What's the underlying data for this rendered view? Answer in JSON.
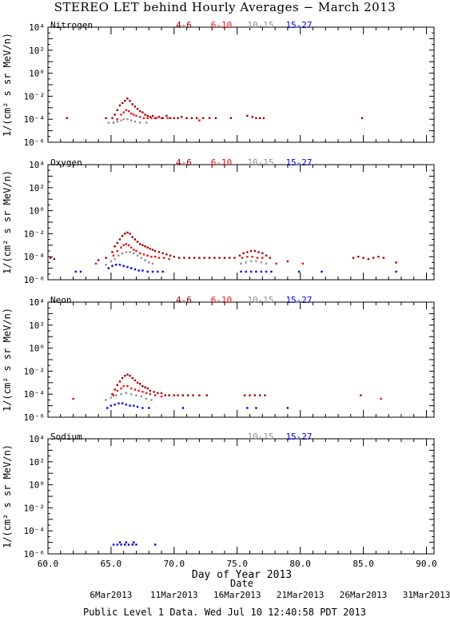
{
  "title": "STEREO LET behind Hourly Averages − March 2013",
  "xlabel": "Day of Year 2013",
  "date_label": "Date",
  "footer": "Public Level 1 Data. Wed Jul 10 12:40:58 PDT 2013",
  "ylabel": "1/(cm² s sr MeV/n)",
  "x_ticks": [
    "60.0",
    "65.0",
    "70.0",
    "75.0",
    "80.0",
    "85.0",
    "90.0"
  ],
  "date_ticks": [
    {
      "label": "6Mar2013",
      "doy": 65
    },
    {
      "label": "11Mar2013",
      "doy": 70
    },
    {
      "label": "16Mar2013",
      "doy": 75
    },
    {
      "label": "21Mar2013",
      "doy": 80
    },
    {
      "label": "26Mar2013",
      "doy": 85
    },
    {
      "label": "31Mar2013",
      "doy": 90
    }
  ],
  "y_ticks": [
    "10⁴",
    "10²",
    "10⁰",
    "10⁻²",
    "10⁻⁴",
    "10⁻⁶"
  ],
  "colors": {
    "e4_6": "#a00000",
    "e6_10": "#ee1111",
    "e10_15": "#909090",
    "e15_27": "#0000ee"
  },
  "chart_data": [
    {
      "type": "scatter",
      "panel": "Nitrogen",
      "xlim": [
        60.0,
        90.6
      ],
      "ylim_log10": [
        -6,
        4
      ],
      "yscale": "log",
      "legend": [
        "4-6",
        "6-10",
        "10-15",
        "15-27"
      ],
      "series": [
        {
          "name": "4-6",
          "color": "#a00000",
          "x": [
            61.5,
            64.6,
            65.1,
            65.3,
            65.5,
            65.7,
            65.9,
            66.1,
            66.3,
            66.5,
            66.7,
            66.9,
            67.1,
            67.3,
            67.5,
            67.7,
            67.9,
            68.1,
            68.3,
            68.5,
            68.8,
            69.1,
            69.4,
            69.7,
            70.0,
            70.3,
            70.6,
            71.0,
            71.4,
            71.8,
            72.3,
            72.8,
            73.3,
            74.5,
            75.8,
            76.2,
            76.5,
            76.8,
            77.1,
            84.9
          ],
          "y": [
            -3.9,
            -3.9,
            -3.9,
            -3.6,
            -3.2,
            -2.8,
            -2.6,
            -2.4,
            -2.2,
            -2.4,
            -2.7,
            -2.9,
            -3.1,
            -3.3,
            -3.4,
            -3.6,
            -3.7,
            -3.8,
            -3.7,
            -3.9,
            -3.8,
            -3.9,
            -3.7,
            -3.9,
            -3.9,
            -3.9,
            -3.8,
            -3.9,
            -3.9,
            -3.9,
            -3.9,
            -3.9,
            -3.9,
            -3.9,
            -3.7,
            -3.8,
            -3.9,
            -3.9,
            -3.9,
            -3.9
          ]
        },
        {
          "name": "6-10",
          "color": "#ee1111",
          "x": [
            65.2,
            65.5,
            65.8,
            66.0,
            66.2,
            66.4,
            66.6,
            66.8,
            67.0,
            67.3,
            67.6,
            67.9,
            68.2,
            68.6,
            69.0,
            69.5,
            72.0
          ],
          "y": [
            -4.3,
            -4.0,
            -3.6,
            -3.4,
            -3.2,
            -3.3,
            -3.5,
            -3.6,
            -3.7,
            -3.8,
            -3.9,
            -3.9,
            -3.9,
            -3.9,
            -3.9,
            -3.9,
            -4.1
          ]
        },
        {
          "name": "10-15",
          "color": "#909090",
          "x": [
            64.8,
            65.2,
            65.5,
            65.8,
            66.0,
            66.3,
            66.6,
            66.9,
            67.3,
            67.8
          ],
          "y": [
            -4.3,
            -4.3,
            -4.2,
            -4.1,
            -4.0,
            -4.0,
            -4.1,
            -4.2,
            -4.3,
            -4.3
          ]
        },
        {
          "name": "15-27",
          "color": "#0000ee",
          "x": [],
          "y": []
        }
      ]
    },
    {
      "type": "scatter",
      "panel": "Oxygen",
      "xlim": [
        60.0,
        90.6
      ],
      "ylim_log10": [
        -6,
        4
      ],
      "yscale": "log",
      "legend": [
        "4-6",
        "6-10",
        "10-15",
        "15-27"
      ],
      "series": [
        {
          "name": "4-6",
          "color": "#a00000",
          "x": [
            60.2,
            60.5,
            64.0,
            64.6,
            65.1,
            65.3,
            65.5,
            65.7,
            65.9,
            66.1,
            66.3,
            66.5,
            66.7,
            66.9,
            67.1,
            67.3,
            67.5,
            67.7,
            67.9,
            68.1,
            68.3,
            68.5,
            68.8,
            69.1,
            69.4,
            69.7,
            70.0,
            70.4,
            70.8,
            71.2,
            71.6,
            72.0,
            72.4,
            72.8,
            73.2,
            73.6,
            74.0,
            74.4,
            74.8,
            75.2,
            75.5,
            75.8,
            76.1,
            76.4,
            76.7,
            77.0,
            77.3,
            77.6,
            79.0,
            84.2,
            84.6,
            85.0,
            85.4,
            85.8,
            86.2,
            86.6,
            87.6
          ],
          "y": [
            -4.1,
            -4.2,
            -4.3,
            -4.1,
            -3.6,
            -3.1,
            -2.8,
            -2.5,
            -2.2,
            -2.0,
            -1.9,
            -2.0,
            -2.3,
            -2.5,
            -2.7,
            -2.9,
            -3.0,
            -3.1,
            -3.2,
            -3.3,
            -3.4,
            -3.5,
            -3.6,
            -3.7,
            -3.8,
            -3.9,
            -4.0,
            -4.1,
            -4.1,
            -4.1,
            -4.1,
            -4.1,
            -4.1,
            -4.1,
            -4.1,
            -4.1,
            -4.1,
            -4.1,
            -4.1,
            -3.9,
            -3.7,
            -3.6,
            -3.5,
            -3.5,
            -3.6,
            -3.7,
            -3.9,
            -4.1,
            -4.4,
            -4.1,
            -4.0,
            -4.1,
            -4.2,
            -4.1,
            -4.0,
            -4.1,
            -4.5
          ]
        },
        {
          "name": "6-10",
          "color": "#ee1111",
          "x": [
            63.8,
            65.2,
            65.5,
            65.8,
            66.0,
            66.2,
            66.4,
            66.6,
            66.8,
            67.0,
            67.3,
            67.6,
            67.9,
            68.2,
            68.5,
            68.8,
            69.2,
            69.6,
            75.4,
            75.8,
            76.2,
            76.6,
            77.0,
            78.1,
            80.2
          ],
          "y": [
            -4.6,
            -3.9,
            -3.5,
            -3.2,
            -3.0,
            -2.9,
            -3.0,
            -3.2,
            -3.4,
            -3.5,
            -3.7,
            -3.8,
            -3.9,
            -4.0,
            -4.0,
            -4.1,
            -4.1,
            -4.2,
            -4.1,
            -4.0,
            -4.0,
            -4.1,
            -4.1,
            -4.6,
            -4.6
          ]
        },
        {
          "name": "10-15",
          "color": "#909090",
          "x": [
            64.6,
            65.0,
            65.3,
            65.6,
            65.9,
            66.2,
            66.5,
            66.8,
            67.1,
            67.4,
            67.7,
            68.0,
            68.3,
            75.3,
            75.7,
            76.1,
            76.5,
            76.9,
            77.3
          ],
          "y": [
            -4.7,
            -4.4,
            -4.2,
            -3.9,
            -3.7,
            -3.6,
            -3.6,
            -3.7,
            -3.9,
            -4.1,
            -4.3,
            -4.5,
            -4.6,
            -4.6,
            -4.5,
            -4.4,
            -4.4,
            -4.5,
            -4.6
          ]
        },
        {
          "name": "15-27",
          "color": "#0000ee",
          "x": [
            62.2,
            62.6,
            64.8,
            65.1,
            65.4,
            65.7,
            66.0,
            66.3,
            66.6,
            66.9,
            67.2,
            67.5,
            67.9,
            68.3,
            68.7,
            69.1,
            75.3,
            75.7,
            76.1,
            76.5,
            76.9,
            77.3,
            77.7,
            79.9,
            81.7,
            87.6
          ],
          "y": [
            -5.3,
            -5.3,
            -5.0,
            -4.8,
            -4.7,
            -4.7,
            -4.8,
            -4.9,
            -5.0,
            -5.1,
            -5.2,
            -5.2,
            -5.3,
            -5.3,
            -5.3,
            -5.3,
            -5.3,
            -5.3,
            -5.3,
            -5.3,
            -5.3,
            -5.3,
            -5.3,
            -5.3,
            -5.3,
            -5.3
          ]
        }
      ]
    },
    {
      "type": "scatter",
      "panel": "Neon",
      "xlim": [
        60.0,
        90.6
      ],
      "ylim_log10": [
        -6,
        4
      ],
      "yscale": "log",
      "legend": [
        "4-6",
        "6-10",
        "10-15",
        "15-27"
      ],
      "series": [
        {
          "name": "4-6",
          "color": "#a00000",
          "x": [
            65.1,
            65.3,
            65.5,
            65.7,
            65.9,
            66.1,
            66.3,
            66.5,
            66.7,
            66.9,
            67.1,
            67.3,
            67.5,
            67.7,
            67.9,
            68.1,
            68.4,
            68.7,
            69.0,
            69.3,
            69.6,
            70.0,
            70.3,
            70.7,
            71.1,
            71.5,
            72.0,
            72.6,
            75.6,
            76.0,
            76.4,
            76.8,
            77.2,
            84.8
          ],
          "y": [
            -4.0,
            -3.6,
            -3.2,
            -2.9,
            -2.6,
            -2.4,
            -2.3,
            -2.4,
            -2.6,
            -2.8,
            -3.0,
            -3.1,
            -3.3,
            -3.4,
            -3.5,
            -3.7,
            -3.8,
            -3.9,
            -3.9,
            -4.1,
            -4.1,
            -4.1,
            -4.1,
            -4.1,
            -4.1,
            -4.1,
            -4.1,
            -4.1,
            -4.1,
            -4.1,
            -4.1,
            -4.1,
            -4.1,
            -4.1
          ]
        },
        {
          "name": "6-10",
          "color": "#ee1111",
          "x": [
            62.0,
            65.2,
            65.5,
            65.8,
            66.0,
            66.3,
            66.6,
            66.9,
            67.2,
            67.5,
            67.8,
            68.1,
            68.5,
            69.0,
            86.4
          ],
          "y": [
            -4.4,
            -4.1,
            -3.7,
            -3.5,
            -3.3,
            -3.3,
            -3.5,
            -3.6,
            -3.7,
            -3.8,
            -3.9,
            -4.0,
            -4.1,
            -4.2,
            -4.4
          ]
        },
        {
          "name": "10-15",
          "color": "#909090",
          "x": [
            64.6,
            65.0,
            65.4,
            65.8,
            66.2,
            66.6,
            67.0,
            67.4,
            67.8,
            68.2
          ],
          "y": [
            -4.5,
            -4.3,
            -4.1,
            -4.0,
            -3.9,
            -4.0,
            -4.1,
            -4.2,
            -4.4,
            -4.5
          ]
        },
        {
          "name": "15-27",
          "color": "#0000ee",
          "x": [
            64.7,
            65.0,
            65.3,
            65.6,
            65.9,
            66.2,
            66.5,
            66.8,
            67.1,
            67.5,
            68.0,
            70.7,
            75.8,
            76.5,
            79.0
          ],
          "y": [
            -5.2,
            -5.0,
            -4.9,
            -4.8,
            -4.8,
            -4.9,
            -5.0,
            -5.0,
            -5.1,
            -5.2,
            -5.2,
            -5.2,
            -5.2,
            -5.2,
            -5.2
          ]
        }
      ]
    },
    {
      "type": "scatter",
      "panel": "Sodium",
      "xlim": [
        60.0,
        90.6
      ],
      "ylim_log10": [
        -6,
        4
      ],
      "yscale": "log",
      "legend": [
        "10-15",
        "15-27"
      ],
      "series": [
        {
          "name": "10-15",
          "color": "#909090",
          "x": [],
          "y": []
        },
        {
          "name": "15-27",
          "color": "#0000ee",
          "x": [
            65.2,
            65.5,
            65.8,
            66.1,
            66.4,
            66.7,
            67.0,
            68.5,
            65.7,
            66.2,
            66.8
          ],
          "y": [
            -5.2,
            -5.2,
            -5.2,
            -5.2,
            -5.2,
            -5.2,
            -5.2,
            -5.2,
            -5.0,
            -5.0,
            -5.0
          ]
        }
      ]
    }
  ]
}
